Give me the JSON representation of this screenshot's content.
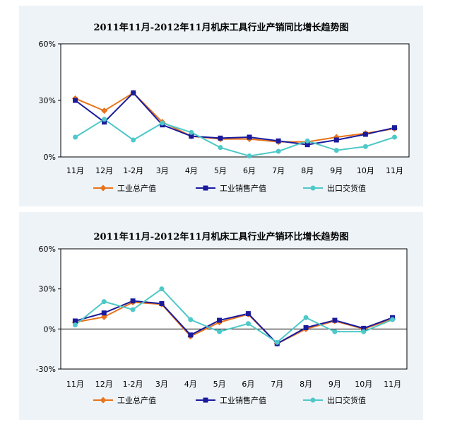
{
  "chart_data": [
    {
      "type": "line",
      "title": "2011年11月-2012年11月机床工具行业产销同比增长趋势图",
      "categories": [
        "11月",
        "12月",
        "1-2月",
        "3月",
        "4月",
        "5月",
        "6月",
        "7月",
        "8月",
        "9月",
        "10月",
        "11月"
      ],
      "y_ticks": [
        "60%",
        "30%",
        "0%"
      ],
      "ylim": [
        0,
        60
      ],
      "grid": false,
      "legend_position": "bottom",
      "series": [
        {
          "name": "工业总产值",
          "color": "#e8731a",
          "marker": "diamond",
          "values": [
            31,
            24.5,
            34,
            18.5,
            11,
            9.5,
            9.5,
            8,
            8,
            10.5,
            12.5,
            15
          ]
        },
        {
          "name": "工业销售产值",
          "color": "#1a1a9c",
          "marker": "square",
          "values": [
            30,
            18.5,
            34,
            17,
            11,
            10,
            10.5,
            8.5,
            6.5,
            9,
            12,
            15.5
          ]
        },
        {
          "name": "出口交货值",
          "color": "#4ec8c8",
          "marker": "circle",
          "values": [
            10.5,
            20,
            9,
            18,
            13,
            5,
            0.5,
            3,
            8.5,
            3.5,
            5.5,
            10.5
          ]
        }
      ]
    },
    {
      "type": "line",
      "title": "2011年11月-2012年11月机床工具行业产销环比增长趋势图",
      "categories": [
        "11月",
        "12月",
        "1-2月",
        "3月",
        "4月",
        "5月",
        "6月",
        "7月",
        "8月",
        "9月",
        "10月",
        "11月"
      ],
      "y_ticks": [
        "60%",
        "30%",
        "0%",
        "-30%"
      ],
      "ylim": [
        -30,
        60
      ],
      "grid": false,
      "legend_position": "bottom",
      "series": [
        {
          "name": "工业总产值",
          "color": "#e8731a",
          "marker": "diamond",
          "values": [
            5,
            9,
            20,
            18.5,
            -5.5,
            5,
            11,
            -11,
            0,
            6,
            0,
            7.5
          ]
        },
        {
          "name": "工业销售产值",
          "color": "#1a1a9c",
          "marker": "square",
          "values": [
            6,
            12,
            21,
            19,
            -4.5,
            6.5,
            11.5,
            -11,
            1,
            6.5,
            0.5,
            8.5
          ]
        },
        {
          "name": "出口交货值",
          "color": "#4ec8c8",
          "marker": "circle",
          "values": [
            3,
            20.5,
            14.5,
            30,
            7,
            -2,
            4,
            -10,
            8.5,
            -2,
            -2,
            7
          ]
        }
      ]
    }
  ]
}
